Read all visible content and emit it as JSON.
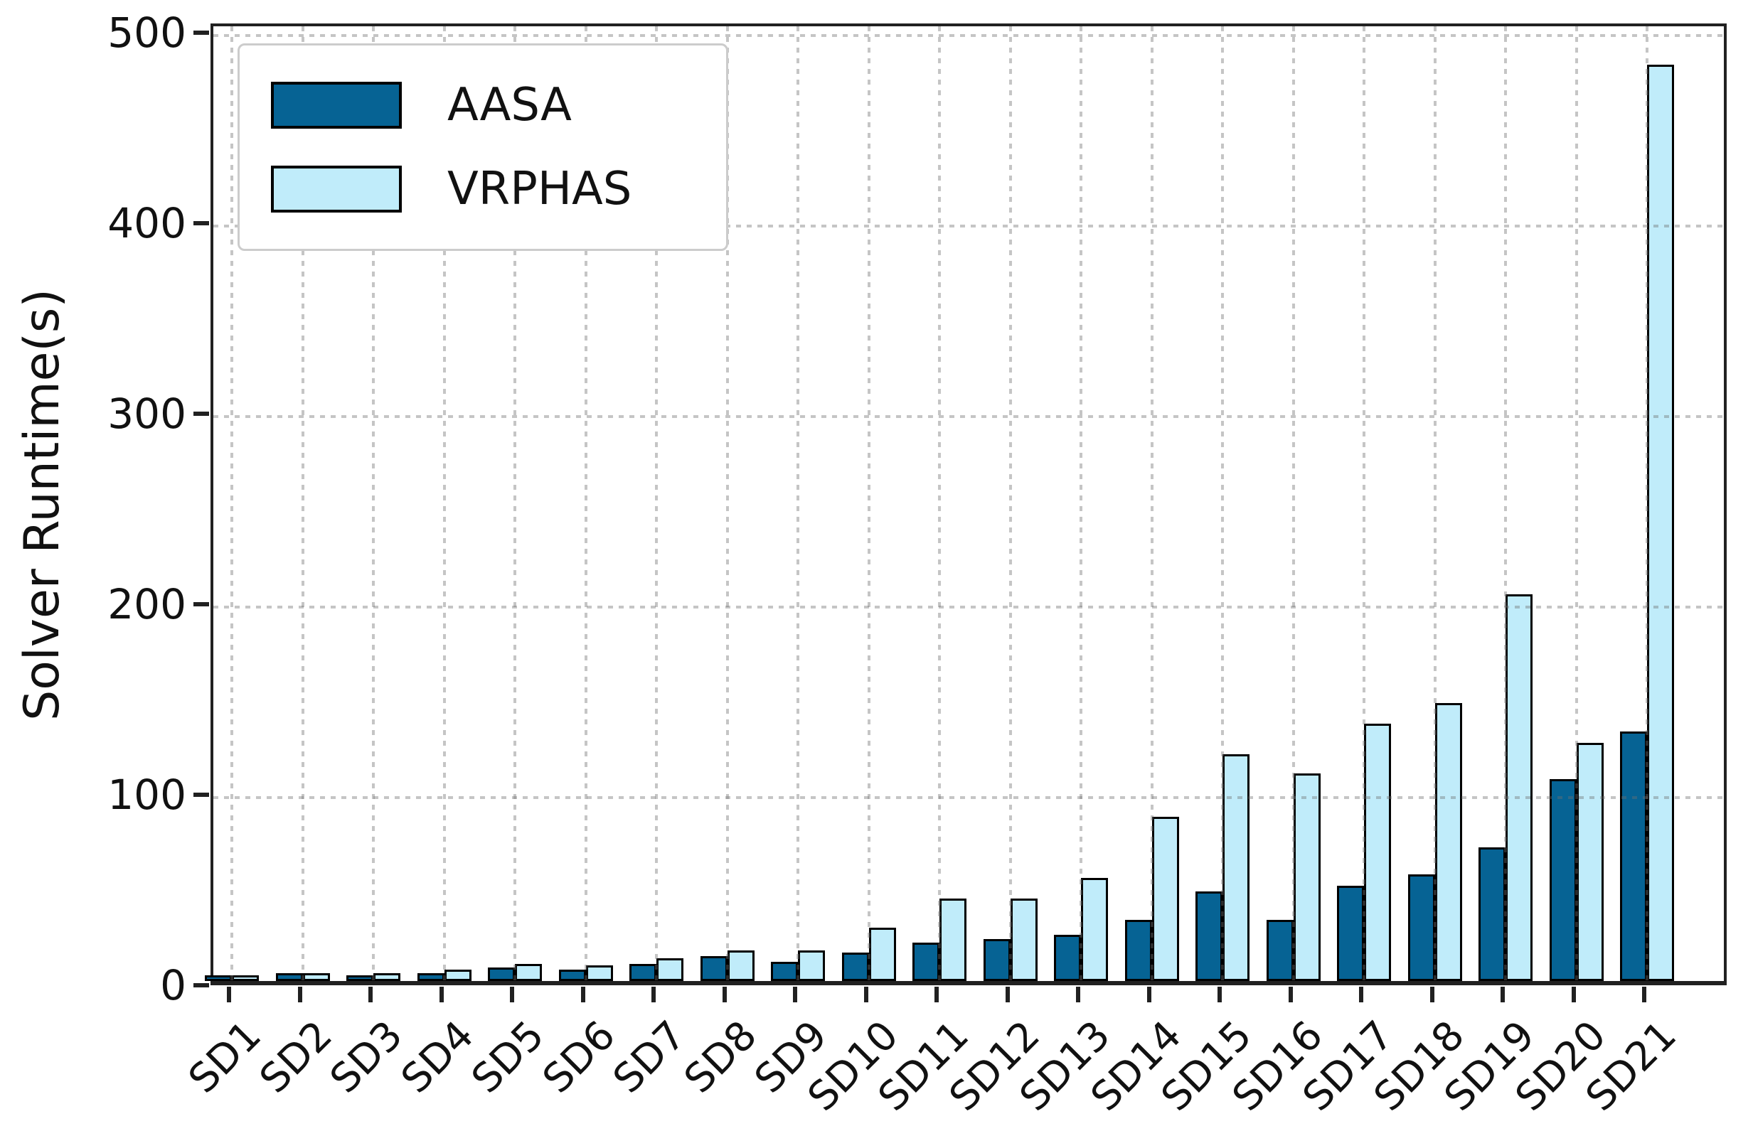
{
  "chart_data": {
    "type": "bar",
    "title": "",
    "xlabel": "",
    "ylabel": "Solver Runtime(s)",
    "categories": [
      "SD1",
      "SD2",
      "SD3",
      "SD4",
      "SD5",
      "SD6",
      "SD7",
      "SD8",
      "SD9",
      "SD10",
      "SD11",
      "SD12",
      "SD13",
      "SD14",
      "SD15",
      "SD16",
      "SD17",
      "SD18",
      "SD19",
      "SD20",
      "SD21"
    ],
    "series": [
      {
        "name": "AASA",
        "color": "#066394",
        "values": [
          2,
          3,
          2,
          3,
          6,
          5,
          8,
          12,
          9,
          14,
          19,
          21,
          23,
          31,
          46,
          31,
          49,
          55,
          69,
          105,
          130
        ]
      },
      {
        "name": "VRPHAS",
        "color": "#c0ecfa",
        "values": [
          2,
          3,
          3,
          5,
          8,
          7,
          11,
          15,
          15,
          27,
          42,
          42,
          53,
          85,
          118,
          108,
          134,
          145,
          202,
          124,
          480
        ]
      }
    ],
    "ylim": [
      0,
      505
    ],
    "yticks": [
      0,
      100,
      200,
      300,
      400,
      500
    ],
    "grid": true,
    "grid_style": "dashed",
    "bar_edge_color": "#000000",
    "axis_color": "#212121",
    "legend_position": "upper left"
  }
}
